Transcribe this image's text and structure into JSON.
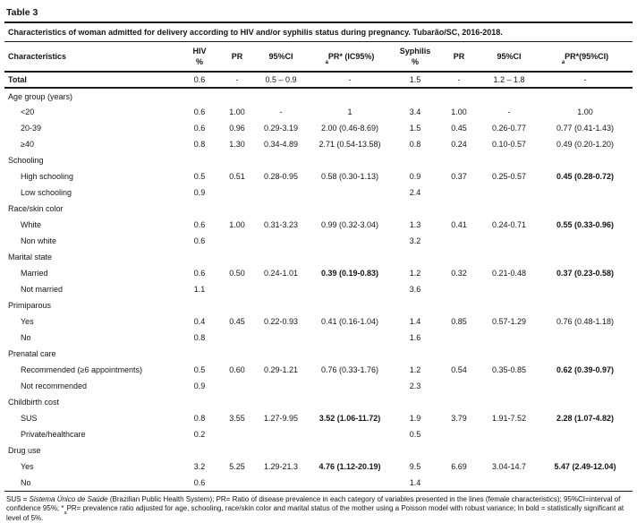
{
  "table": {
    "title": "Table 3",
    "caption": "Characteristics of woman admitted for delivery according to HIV and/or syphilis status during pregnancy. Tubarão/SC, 2016-2018.",
    "columns": {
      "characteristics": "Characteristics",
      "hiv_line1": "HIV",
      "hiv_line2": "%",
      "pr_hiv": "PR",
      "ci_hiv": "95%CI",
      "apr_sub": "a",
      "apr_hiv": "PR* (IC95%)",
      "syphilis_line1": "Syphilis",
      "syphilis_line2": "%",
      "pr_syphilis": "PR",
      "ci_syphilis": "95%CI",
      "apr_syphilis": "PR*(95%CI)"
    },
    "rows": [
      {
        "type": "total",
        "label": "Total",
        "cells": [
          "0.6",
          "-",
          "0.5 – 0.9",
          "-",
          "1.5",
          "-",
          "1.2 – 1.8",
          "-"
        ],
        "bold": []
      },
      {
        "type": "section",
        "label": "Age group (years)"
      },
      {
        "type": "item",
        "label": "<20",
        "cells": [
          "0.6",
          "1.00",
          "-",
          "1",
          "3.4",
          "1.00",
          "-",
          "1.00"
        ],
        "bold": []
      },
      {
        "type": "item",
        "label": "20-39",
        "cells": [
          "0.6",
          "0.96",
          "0.29-3.19",
          "2.00 (0.46-8.69)",
          "1.5",
          "0.45",
          "0.26-0.77",
          "0.77 (0.41-1.43)"
        ],
        "bold": []
      },
      {
        "type": "item",
        "label": "≥40",
        "cells": [
          "0.8",
          "1.30",
          "0.34-4.89",
          "2.71 (0.54-13.58)",
          "0.8",
          "0.24",
          "0.10-0.57",
          "0.49 (0.20-1.20)"
        ],
        "bold": []
      },
      {
        "type": "section",
        "label": "Schooling"
      },
      {
        "type": "item",
        "label": "High schooling",
        "cells": [
          "0.5",
          "0.51",
          "0.28-0.95",
          "0.58 (0.30-1.13)",
          "0.9",
          "0.37",
          "0.25-0.57",
          "0.45 (0.28-0.72)"
        ],
        "bold": [
          7
        ]
      },
      {
        "type": "item",
        "label": "Low schooling",
        "cells": [
          "0.9",
          "",
          "",
          "",
          "2.4",
          "",
          "",
          ""
        ],
        "bold": []
      },
      {
        "type": "section",
        "label": "Race/skin color"
      },
      {
        "type": "item",
        "label": "White",
        "cells": [
          "0.6",
          "1.00",
          "0.31-3.23",
          "0.99 (0.32-3.04)",
          "1.3",
          "0.41",
          "0.24-0.71",
          "0.55 (0.33-0.96)"
        ],
        "bold": [
          7
        ]
      },
      {
        "type": "item",
        "label": "Non white",
        "cells": [
          "0.6",
          "",
          "",
          "",
          "3.2",
          "",
          "",
          ""
        ],
        "bold": []
      },
      {
        "type": "section",
        "label": "Marital state"
      },
      {
        "type": "item",
        "label": "Married",
        "cells": [
          "0.6",
          "0.50",
          "0.24-1.01",
          "0.39 (0.19-0.83)",
          "1.2",
          "0.32",
          "0.21-0.48",
          "0.37 (0.23-0.58)"
        ],
        "bold": [
          3,
          7
        ]
      },
      {
        "type": "item",
        "label": "Not married",
        "cells": [
          "1.1",
          "",
          "",
          "",
          "3.6",
          "",
          "",
          ""
        ],
        "bold": []
      },
      {
        "type": "section",
        "label": "Primiparous"
      },
      {
        "type": "item",
        "label": "Yes",
        "cells": [
          "0.4",
          "0.45",
          "0.22-0.93",
          "0.41 (0.16-1.04)",
          "1.4",
          "0.85",
          "0.57-1.29",
          "0.76 (0.48-1.18)"
        ],
        "bold": []
      },
      {
        "type": "item",
        "label": "No",
        "cells": [
          "0.8",
          "",
          "",
          "",
          "1.6",
          "",
          "",
          ""
        ],
        "bold": []
      },
      {
        "type": "section",
        "label": "Prenatal care"
      },
      {
        "type": "item",
        "label": "Recommended (≥6 appointments)",
        "cells": [
          "0.5",
          "0.60",
          "0.29-1.21",
          "0.76 (0.33-1.76)",
          "1.2",
          "0.54",
          "0.35-0.85",
          "0.62 (0.39-0.97)"
        ],
        "bold": [
          7
        ]
      },
      {
        "type": "item",
        "label": "Not recommended",
        "cells": [
          "0.9",
          "",
          "",
          "",
          "2.3",
          "",
          "",
          ""
        ],
        "bold": []
      },
      {
        "type": "section",
        "label": "Childbirth cost"
      },
      {
        "type": "item",
        "label": "SUS",
        "cells": [
          "0.8",
          "3.55",
          "1.27-9.95",
          "3.52 (1.06-11.72)",
          "1.9",
          "3.79",
          "1.91-7.52",
          "2.28 (1.07-4.82)"
        ],
        "bold": [
          3,
          7
        ]
      },
      {
        "type": "item",
        "label": "Private/healthcare",
        "cells": [
          "0.2",
          "",
          "",
          "",
          "0.5",
          "",
          "",
          ""
        ],
        "bold": []
      },
      {
        "type": "section",
        "label": "Drug use"
      },
      {
        "type": "item",
        "label": "Yes",
        "cells": [
          "3.2",
          "5.25",
          "1.29-21.3",
          "4.76 (1.12-20.19)",
          "9.5",
          "6.69",
          "3.04-14.7",
          "5.47 (2.49-12.04)"
        ],
        "bold": [
          3,
          7
        ]
      },
      {
        "type": "item",
        "label": "No",
        "cells": [
          "0.6",
          "",
          "",
          "",
          "1.4",
          "",
          "",
          ""
        ],
        "bold": []
      }
    ],
    "footnote": {
      "seg1": "SUS = ",
      "seg2_italic": "Sistema Único de Saúde",
      "seg3": " (Brazilian Public Health System); PR= Ratio of disease prevalence in each category of variables presented in the lines (female characteristics); 95%CI=interval of confidence 95%; *",
      "seg4_sub": "a",
      "seg5": "PR= prevalence ratio adjusted for age, schooling, race/skin color and marital status of the mother using a Poisson model with robust variance; In bold = statistically significant at level of 5%."
    }
  }
}
